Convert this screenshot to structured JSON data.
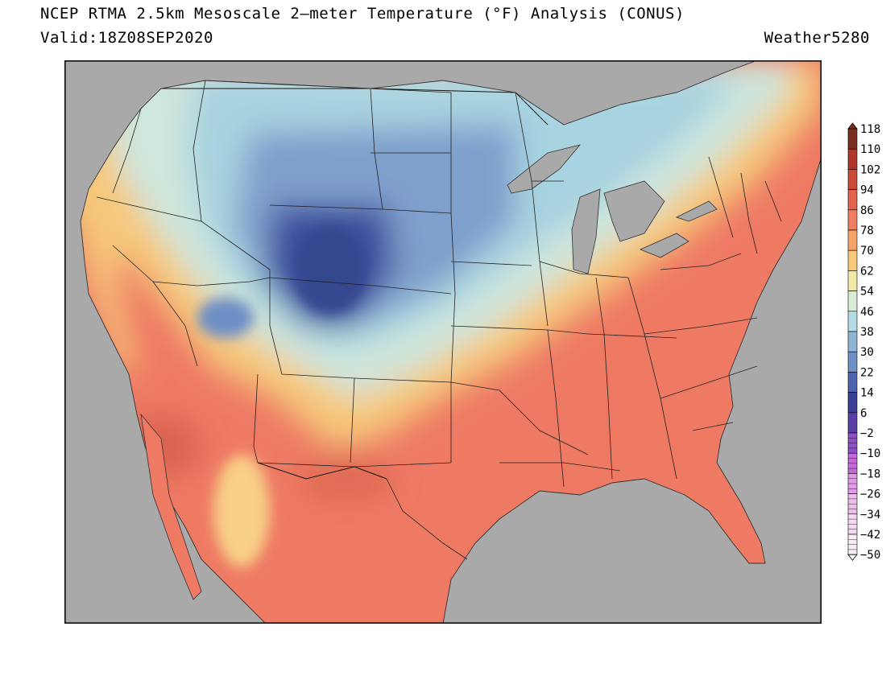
{
  "header": {
    "title": "NCEP RTMA 2.5km Mesoscale 2–meter Temperature (°F) Analysis (CONUS)",
    "valid": "Valid:18Z08SEP2020",
    "credit": "Weather5280"
  },
  "colors": {
    "land_mask": "#a9a9a9",
    "frame": "#000000",
    "warm_core": "#ee7a64",
    "hot_core": "#d9644f",
    "mild": "#f6c87a",
    "cool": "#a8d3e0",
    "cold": "#6f8fc2",
    "very_cold": "#3c4f9c"
  },
  "colorbar": {
    "unit": "°F",
    "labels": [
      "118",
      "110",
      "102",
      "94",
      "86",
      "78",
      "70",
      "62",
      "54",
      "46",
      "38",
      "30",
      "22",
      "14",
      "6",
      "−2",
      "−10",
      "−18",
      "−26",
      "−34",
      "−42",
      "−50"
    ],
    "colors": [
      "#7a2c20",
      "#b0362a",
      "#cc4a38",
      "#e3624d",
      "#ef7d5f",
      "#f6a36a",
      "#f8c97a",
      "#f3e8a6",
      "#d8ecd6",
      "#b5dbe8",
      "#8fb4d6",
      "#6d8fc6",
      "#4d63ad",
      "#3a3f95",
      "#5a3fa8",
      "#8e4fc8",
      "#c56ad9",
      "#e29ae6",
      "#ecbfea",
      "#f4d8ef",
      "#f8ecf5",
      "#ffffff"
    ]
  }
}
